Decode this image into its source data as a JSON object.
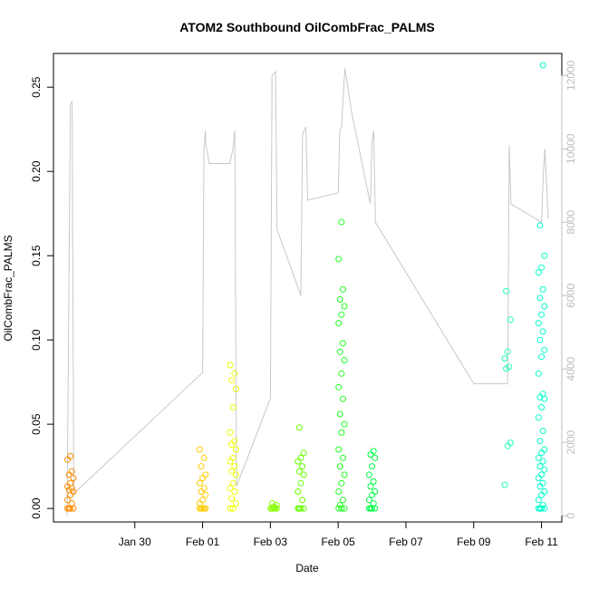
{
  "chart_data": {
    "type": "scatter",
    "title": "ATOM2 Southbound OilCombFrac_PALMS",
    "xlabel": "Date",
    "ylabel": "OilCombFrac_PALMS",
    "x_ticks": [
      "Jan 30",
      "Feb 01",
      "Feb 03",
      "Feb 05",
      "Feb 07",
      "Feb 09",
      "Feb 11"
    ],
    "x_tick_days": [
      30,
      32,
      34,
      36,
      38,
      40,
      42
    ],
    "xlim_days": [
      27.6,
      42.6
    ],
    "ylim": [
      -0.008,
      0.27
    ],
    "y_ticks": [
      "0.00",
      "0.05",
      "0.10",
      "0.15",
      "0.20",
      "0.25"
    ],
    "y_tick_values": [
      0,
      0.05,
      0.1,
      0.15,
      0.2,
      0.25
    ],
    "y2_ticks": [
      "0",
      "2000",
      "4000",
      "6000",
      "8000",
      "10000",
      "12000"
    ],
    "y2_tick_values": [
      0,
      2000,
      4000,
      6000,
      8000,
      10000,
      12000
    ],
    "y2lim": [
      -170,
      12600
    ],
    "y2_color": "#bdbdbd",
    "altitude_color": "#c8c8c8",
    "grid": false,
    "flights": [
      {
        "day": 28.1,
        "color": "#ff8c00",
        "values": [
          0,
          0,
          0,
          0,
          0.003,
          0.005,
          0.008,
          0.01,
          0.011,
          0.012,
          0.013,
          0.015,
          0.018,
          0.02,
          0.022,
          0.029,
          0.031
        ]
      },
      {
        "day": 32.0,
        "color": "#ffcc00",
        "values": [
          0,
          0,
          0,
          0,
          0,
          0.003,
          0.005,
          0.008,
          0.01,
          0.012,
          0.015,
          0.018,
          0.02,
          0.025,
          0.03,
          0.035
        ]
      },
      {
        "day": 32.9,
        "color": "#eeff00",
        "values": [
          0,
          0,
          0.003,
          0.006,
          0.01,
          0.012,
          0.015,
          0.02,
          0.022,
          0.025,
          0.028,
          0.03,
          0.035,
          0.038,
          0.04,
          0.045,
          0.06,
          0.071,
          0.076,
          0.08,
          0.085
        ]
      },
      {
        "day": 34.1,
        "color": "#88ff00",
        "values": [
          0,
          0,
          0,
          0,
          0,
          0,
          0.001,
          0.002,
          0.003
        ]
      },
      {
        "day": 34.9,
        "color": "#66ff00",
        "values": [
          0,
          0,
          0,
          0,
          0.005,
          0.01,
          0.015,
          0.02,
          0.022,
          0.025,
          0.028,
          0.03,
          0.033,
          0.048
        ]
      },
      {
        "day": 36.1,
        "color": "#22ff22",
        "values": [
          0,
          0,
          0,
          0.002,
          0.005,
          0.01,
          0.015,
          0.02,
          0.025,
          0.03,
          0.035,
          0.045,
          0.05,
          0.056,
          0.065,
          0.072,
          0.08,
          0.088,
          0.093,
          0.098,
          0.11,
          0.115,
          0.12,
          0.124,
          0.13,
          0.148,
          0.17
        ]
      },
      {
        "day": 37.0,
        "color": "#00ff44",
        "values": [
          0,
          0,
          0,
          0,
          0.003,
          0.005,
          0.008,
          0.01,
          0.013,
          0.016,
          0.02,
          0.025,
          0.03,
          0.032,
          0.034
        ]
      },
      {
        "day": 41.0,
        "color": "#22ffbb",
        "values": [
          0.014,
          0.037,
          0.039,
          0.083,
          0.084,
          0.089,
          0.093,
          0.112,
          0.129
        ]
      },
      {
        "day": 42.0,
        "color": "#00ffcc",
        "values": [
          0,
          0,
          0,
          0,
          0.002,
          0.005,
          0.008,
          0.01,
          0.013,
          0.015,
          0.018,
          0.02,
          0.023,
          0.025,
          0.028,
          0.03,
          0.033,
          0.035,
          0.04,
          0.046,
          0.054,
          0.06,
          0.065,
          0.066,
          0.068,
          0.08,
          0.09,
          0.094,
          0.1,
          0.105,
          0.11,
          0.115,
          0.12,
          0.125,
          0.13,
          0.14,
          0.143,
          0.15,
          0.168,
          0.263
        ]
      }
    ],
    "altitude_track": [
      [
        28.0,
        0
      ],
      [
        28.1,
        11200
      ],
      [
        28.15,
        11300
      ],
      [
        28.2,
        600
      ],
      [
        32.0,
        3900
      ],
      [
        32.04,
        10000
      ],
      [
        32.08,
        10500
      ],
      [
        32.1,
        10100
      ],
      [
        32.2,
        9600
      ],
      [
        32.8,
        9600
      ],
      [
        32.9,
        10000
      ],
      [
        32.95,
        10500
      ],
      [
        33.0,
        800
      ],
      [
        34.0,
        3200
      ],
      [
        34.05,
        12000
      ],
      [
        34.15,
        12100
      ],
      [
        34.2,
        7800
      ],
      [
        34.9,
        6000
      ],
      [
        34.95,
        10400
      ],
      [
        35.05,
        10600
      ],
      [
        35.1,
        8600
      ],
      [
        36.0,
        8800
      ],
      [
        36.05,
        10500
      ],
      [
        36.1,
        10600
      ],
      [
        36.2,
        12200
      ],
      [
        36.4,
        11000
      ],
      [
        36.95,
        8500
      ],
      [
        37.0,
        10200
      ],
      [
        37.05,
        10500
      ],
      [
        37.1,
        8000
      ],
      [
        40.0,
        3600
      ],
      [
        41.0,
        3600
      ],
      [
        41.05,
        10100
      ],
      [
        41.1,
        8500
      ],
      [
        42.0,
        8000
      ],
      [
        42.05,
        9200
      ],
      [
        42.1,
        10000
      ],
      [
        42.2,
        8100
      ]
    ]
  }
}
